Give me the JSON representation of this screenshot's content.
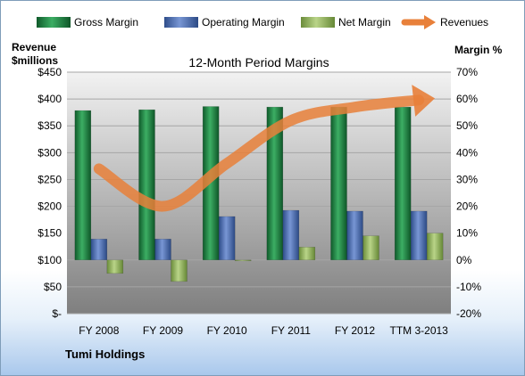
{
  "chart_data": {
    "type": "bar",
    "title": "12-Month Period Margins",
    "company_label": "Tumi Holdings",
    "left_axis_label": [
      "Revenue",
      "$millions"
    ],
    "right_axis_label": "Margin %",
    "categories": [
      "FY 2008",
      "FY 2009",
      "FY 2010",
      "FY 2011",
      "FY 2012",
      "TTM 3-2013"
    ],
    "left_ticks": [
      "$-",
      "$50",
      "$100",
      "$150",
      "$200",
      "$250",
      "$300",
      "$350",
      "$400",
      "$450"
    ],
    "right_ticks": [
      "-20%",
      "-10%",
      "0%",
      "10%",
      "20%",
      "30%",
      "40%",
      "50%",
      "60%",
      "70%"
    ],
    "left_ylim": [
      0,
      450
    ],
    "right_ylim": [
      -20,
      70
    ],
    "series": [
      {
        "name": "Gross Margin",
        "axis": "right",
        "color": "#1e7b3e",
        "values": [
          55.7,
          56.0,
          57.2,
          57.0,
          57.0,
          57.0
        ]
      },
      {
        "name": "Operating Margin",
        "axis": "right",
        "color": "#4a6fb5",
        "values": [
          7.8,
          7.8,
          16.2,
          18.5,
          18.2,
          18.2
        ]
      },
      {
        "name": "Net Margin",
        "axis": "right",
        "color": "#8fb35a",
        "values": [
          -5.0,
          -8.0,
          -0.3,
          4.8,
          9.0,
          10.0
        ]
      },
      {
        "name": "Revenues",
        "axis": "left",
        "color": "#e8803a",
        "type": "line",
        "values": [
          270,
          200,
          280,
          360,
          385,
          398
        ]
      }
    ],
    "grid": true,
    "legend": "top"
  }
}
